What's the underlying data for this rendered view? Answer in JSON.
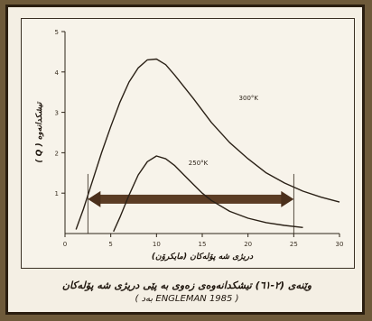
{
  "chart_data": {
    "type": "line",
    "title": "",
    "xlabel": "دریژی شه پۆلەکان (مایکرۆن)",
    "ylabel": "تیشکدانەوە ( Q )",
    "xlim": [
      0,
      30
    ],
    "ylim": [
      0,
      5
    ],
    "x_ticks": [
      "0",
      "5",
      "10",
      "15",
      "20",
      "25",
      "30"
    ],
    "y_ticks": [
      "1",
      "2",
      "3",
      "4",
      "5"
    ],
    "series": [
      {
        "name": "300°K",
        "x": [
          1.2,
          2,
          3,
          4,
          5,
          6,
          7,
          8,
          9,
          10,
          11,
          12,
          14,
          16,
          18,
          20,
          22,
          24,
          26,
          28,
          30
        ],
        "y": [
          0.1,
          0.6,
          1.3,
          2.0,
          2.65,
          3.25,
          3.75,
          4.1,
          4.3,
          4.32,
          4.18,
          3.92,
          3.35,
          2.75,
          2.25,
          1.85,
          1.5,
          1.25,
          1.05,
          0.9,
          0.78
        ]
      },
      {
        "name": "250°K",
        "x": [
          5.3,
          6,
          7,
          8,
          9,
          10,
          11,
          12,
          13,
          14,
          15,
          16,
          18,
          20,
          22,
          24,
          26
        ],
        "y": [
          0.05,
          0.4,
          0.95,
          1.45,
          1.78,
          1.92,
          1.85,
          1.68,
          1.45,
          1.22,
          1.0,
          0.82,
          0.55,
          0.38,
          0.27,
          0.2,
          0.15
        ]
      }
    ],
    "annotations": [
      {
        "text": "300°K",
        "x": 19,
        "y": 3.3
      },
      {
        "text": "250°K",
        "x": 13.5,
        "y": 1.7
      }
    ],
    "range_arrow": {
      "from": 2.5,
      "to": 25,
      "y": 0.85
    },
    "grid": false,
    "legend": "none"
  },
  "caption": {
    "line1": "وێنەی (٢-٦١) تیشکدانەوەی زەوی بە پێی دریژی شه پۆلەکان",
    "line2": "( ENGLEMAN 1985 بەد )"
  }
}
